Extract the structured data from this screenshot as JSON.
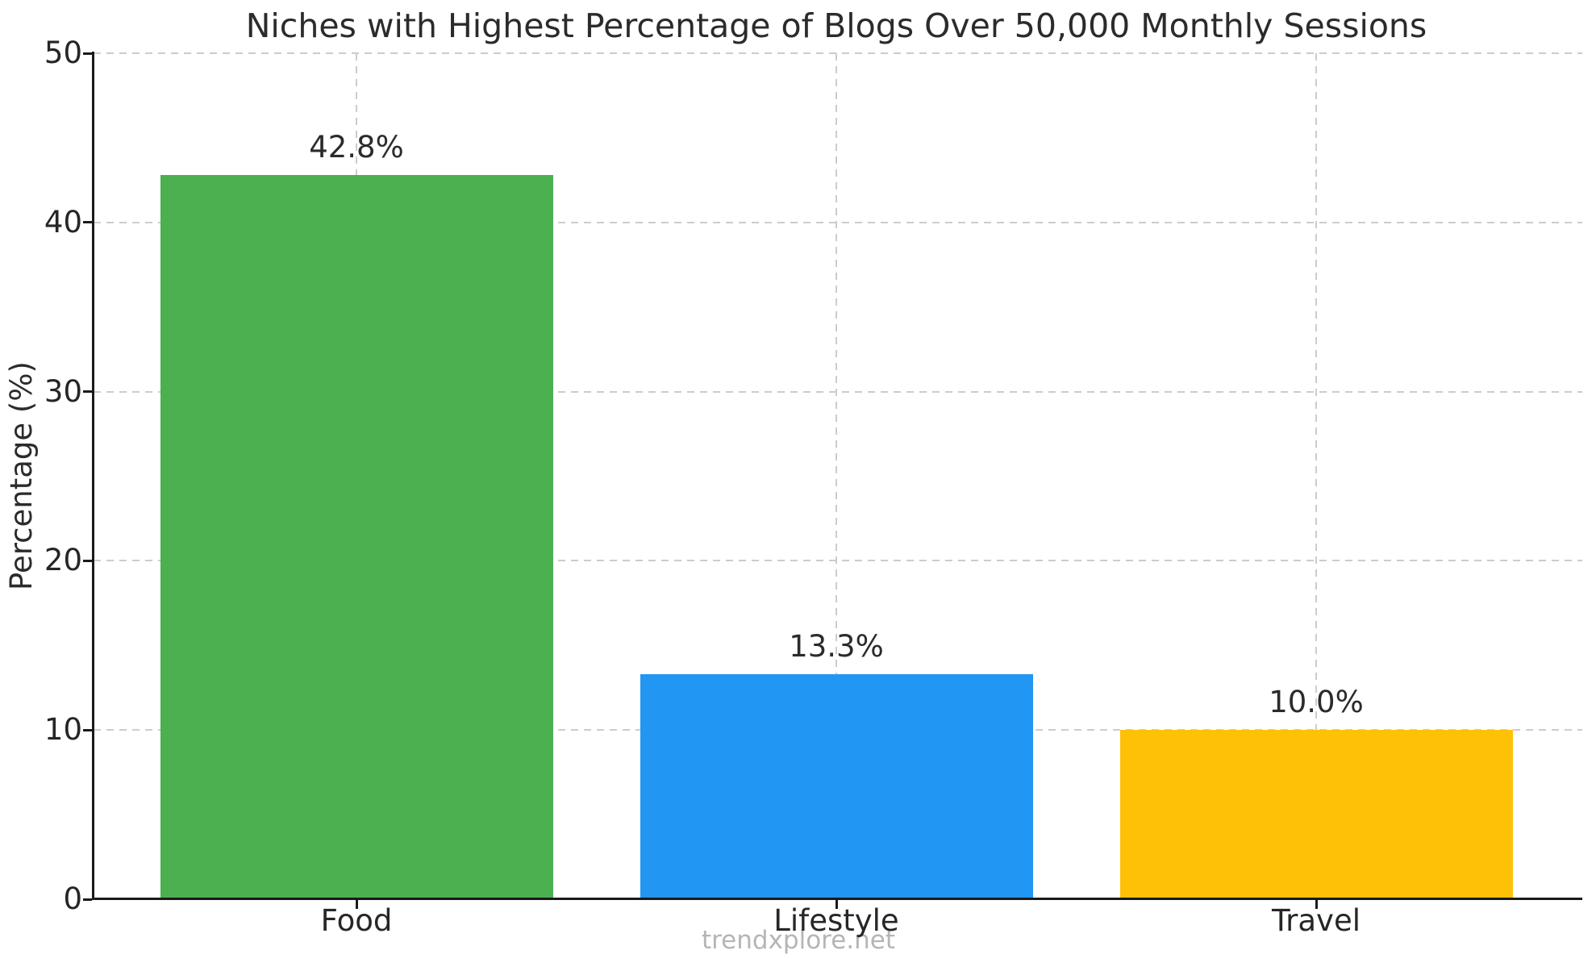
{
  "chart_data": {
    "type": "bar",
    "title": "Niches with Highest Percentage of Blogs Over 50,000 Monthly Sessions",
    "categories": [
      "Food",
      "Lifestyle",
      "Travel"
    ],
    "values": [
      42.8,
      13.3,
      10.0
    ],
    "value_labels": [
      "42.8%",
      "13.3%",
      "10.0%"
    ],
    "series_colors": [
      "#4caf50",
      "#2196f3",
      "#ffc107"
    ],
    "xlabel": "",
    "ylabel": "Percentage (%)",
    "ylim": [
      0,
      50
    ],
    "yticks": [
      "0",
      "10",
      "20",
      "30",
      "40",
      "50"
    ],
    "grid": "dashed",
    "legend": "none",
    "watermark": "trendxplore.net",
    "colors": {
      "text": "#2b2b2b",
      "grid": "#cccccc",
      "spine": "#1a1a1a",
      "watermark": "#b5b5b5",
      "background": "#ffffff"
    }
  }
}
